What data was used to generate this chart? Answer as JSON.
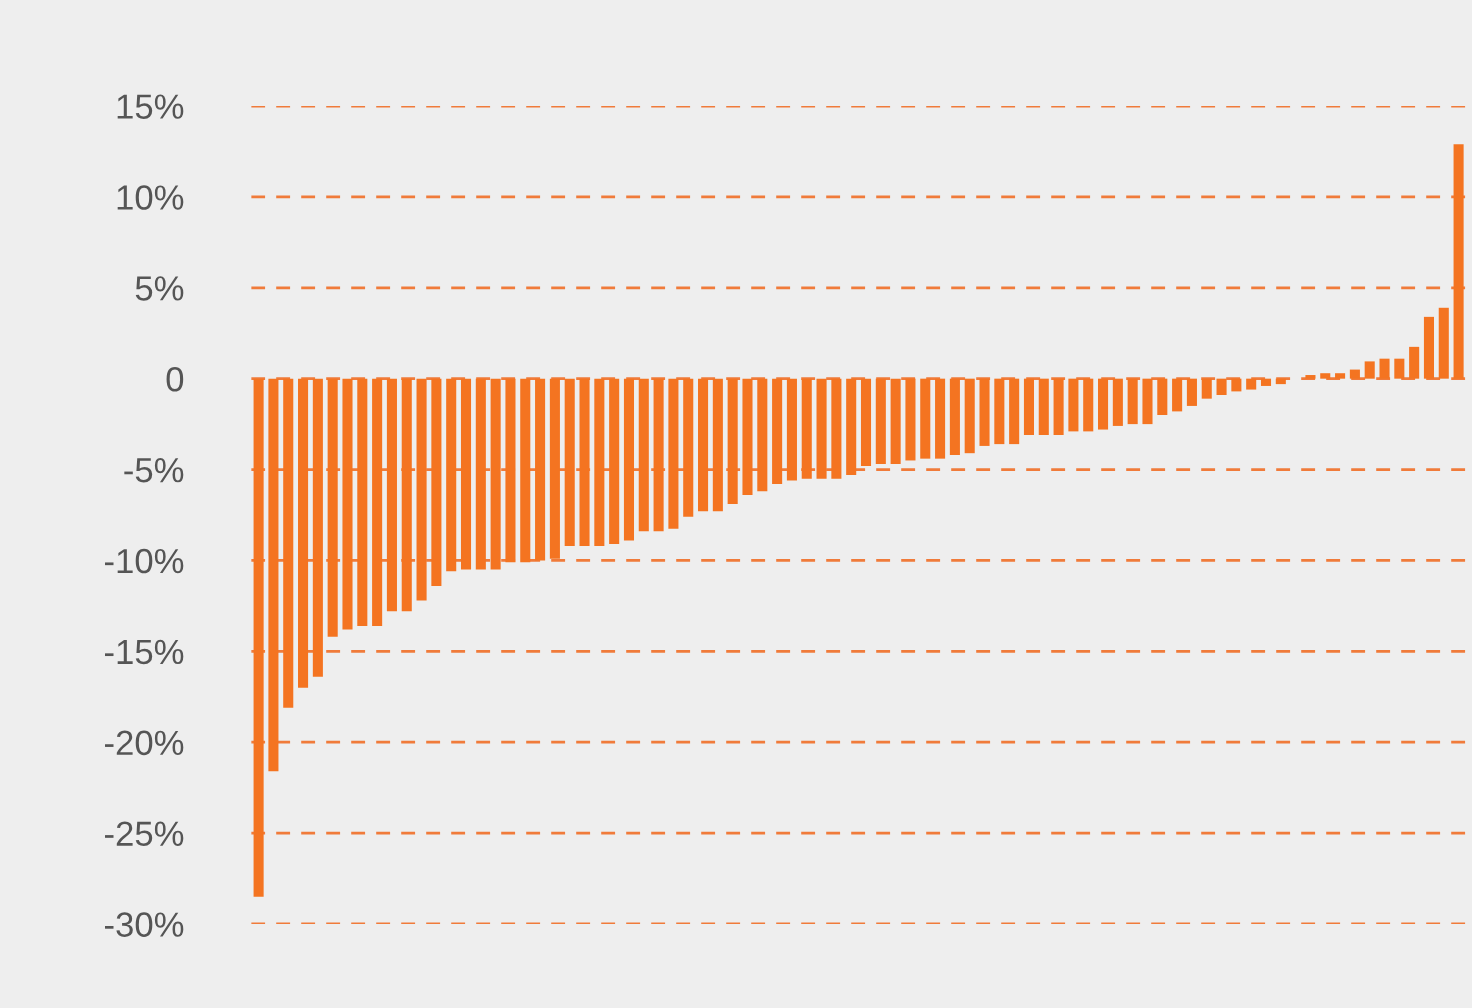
{
  "chart_data": {
    "type": "bar",
    "categories": [
      null,
      null,
      null,
      null,
      null,
      null,
      null,
      null,
      null,
      null,
      null,
      null,
      null,
      null,
      null,
      null,
      null,
      null,
      null,
      null,
      null,
      null,
      null,
      null,
      null,
      null,
      null,
      null,
      null,
      null,
      null,
      null,
      null,
      null,
      null,
      null,
      null,
      null,
      null,
      null,
      null,
      null,
      null,
      null,
      null,
      null,
      null,
      null,
      null,
      null,
      null,
      null,
      null,
      null,
      null,
      null,
      null,
      null,
      null,
      null,
      null,
      null,
      null,
      null,
      null,
      null,
      null,
      null,
      null,
      null,
      null,
      null,
      null,
      null,
      null,
      null,
      null,
      null,
      null,
      null,
      null,
      null
    ],
    "values": [
      -28.5,
      -21.6,
      -18.1,
      -17.0,
      -16.4,
      -14.2,
      -13.8,
      -13.6,
      -13.6,
      -12.8,
      -12.8,
      -12.2,
      -11.4,
      -10.6,
      -10.5,
      -10.5,
      -10.5,
      -10.1,
      -10.1,
      -10.0,
      -9.9,
      -9.2,
      -9.2,
      -9.2,
      -9.1,
      -8.9,
      -8.4,
      -8.4,
      -8.25,
      -7.6,
      -7.3,
      -7.3,
      -6.9,
      -6.4,
      -6.2,
      -5.8,
      -5.6,
      -5.5,
      -5.5,
      -5.5,
      -5.3,
      -4.8,
      -4.7,
      -4.7,
      -4.5,
      -4.4,
      -4.4,
      -4.2,
      -4.1,
      -3.7,
      -3.6,
      -3.6,
      -3.1,
      -3.1,
      -3.1,
      -2.9,
      -2.9,
      -2.8,
      -2.6,
      -2.5,
      -2.5,
      -2.0,
      -1.8,
      -1.5,
      -1.1,
      -0.9,
      -0.7,
      -0.6,
      -0.4,
      -0.3,
      0,
      0.2,
      0.3,
      0.3,
      0.5,
      0.95,
      1.1,
      1.1,
      1.75,
      3.4,
      3.9,
      12.9
    ],
    "color": "#f47421",
    "ylim": [
      -30,
      15
    ],
    "yticks": [
      {
        "value": -30,
        "label": "-30%"
      },
      {
        "value": -25,
        "label": "-25%"
      },
      {
        "value": -20,
        "label": "-20%"
      },
      {
        "value": -15,
        "label": "-15%"
      },
      {
        "value": -10,
        "label": "-10%"
      },
      {
        "value": -5,
        "label": "-5%"
      },
      0,
      {
        "value": 5,
        "label": "5%"
      },
      {
        "value": 10,
        "label": "10%"
      },
      {
        "value": 15,
        "label": "15%"
      }
    ],
    "grid": "y",
    "tick_labels": "y"
  }
}
